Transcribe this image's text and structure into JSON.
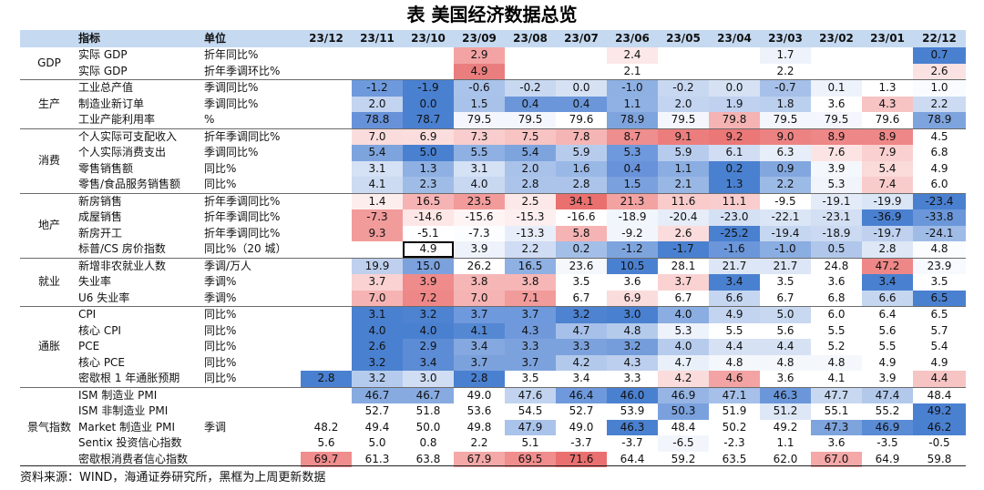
{
  "title": "表  美国经济数据总览",
  "headers": {
    "indicator": "指标",
    "unit": "单位",
    "periods": [
      "23/12",
      "23/11",
      "23/10",
      "23/09",
      "23/08",
      "23/07",
      "23/06",
      "23/05",
      "23/04",
      "23/03",
      "23/02",
      "23/01",
      "22/12"
    ]
  },
  "groups": [
    {
      "name": "GDP",
      "rows": [
        {
          "name": "实际 GDP",
          "unit": "折年同比%",
          "values": [
            "",
            "",
            "",
            "2.9",
            "",
            "",
            "2.4",
            "",
            "",
            "1.7",
            "",
            "",
            "0.7"
          ],
          "colors": [
            "",
            "",
            "",
            "#f3a3a3",
            "",
            "",
            "#fce8e8",
            "",
            "",
            "#eef2fa",
            "",
            "",
            "#4a80d0"
          ]
        },
        {
          "name": "实际 GDP",
          "unit": "折年季调环比%",
          "values": [
            "",
            "",
            "",
            "4.9",
            "",
            "",
            "2.1",
            "",
            "",
            "2.2",
            "",
            "",
            "2.6"
          ],
          "colors": [
            "",
            "",
            "",
            "#ea7e7e",
            "",
            "",
            "#ffffff",
            "",
            "",
            "#ffffff",
            "",
            "",
            "#fbe2e2"
          ]
        }
      ]
    },
    {
      "name": "生产",
      "rows": [
        {
          "name": "工业总产值",
          "unit": "季调同比%",
          "values": [
            "",
            "-1.2",
            "-1.9",
            "-0.6",
            "-0.2",
            "0.0",
            "-1.0",
            "-0.2",
            "0.0",
            "-0.7",
            "0.1",
            "1.3",
            "1.0"
          ],
          "colors": [
            "",
            "#6e99dc",
            "#4a80d0",
            "#aac3ea",
            "#c8d8f1",
            "#d6e2f4",
            "#8eb0e3",
            "#c8d8f1",
            "#d6e2f4",
            "#a6c0e9",
            "#eef2fa",
            "#ffffff",
            "#f9fbfe"
          ]
        },
        {
          "name": "制造业新订单",
          "unit": "季调同比%",
          "values": [
            "",
            "2.0",
            "0.0",
            "1.5",
            "0.4",
            "0.4",
            "1.1",
            "2.0",
            "1.9",
            "1.8",
            "3.6",
            "4.3",
            "2.2"
          ],
          "colors": [
            "",
            "#c3d4f0",
            "#4a80d0",
            "#a9c2e9",
            "#6b97da",
            "#6b97da",
            "#90b1e3",
            "#c3d4f0",
            "#bfd1ef",
            "#bbcfee",
            "#ffffff",
            "#f7c3c3",
            "#ccdbf2"
          ]
        },
        {
          "name": "工业产能利用率",
          "unit": "%",
          "values": [
            "",
            "78.8",
            "78.7",
            "79.5",
            "79.5",
            "79.6",
            "78.9",
            "79.5",
            "79.8",
            "79.5",
            "79.5",
            "79.6",
            "78.9"
          ],
          "colors": [
            "",
            "#6792d9",
            "#4a80d0",
            "#f3f6fc",
            "#f3f6fc",
            "#ffffff",
            "#7ea4de",
            "#f3f6fc",
            "#f6b3b3",
            "#f3f6fc",
            "#f3f6fc",
            "#ffffff",
            "#7ea4de"
          ]
        }
      ]
    },
    {
      "name": "消费",
      "rows": [
        {
          "name": "个人实际可支配收入",
          "unit": "折年季调同比%",
          "values": [
            "",
            "7.0",
            "6.9",
            "7.3",
            "7.5",
            "7.8",
            "8.7",
            "9.1",
            "9.2",
            "9.0",
            "8.9",
            "8.9",
            "4.5"
          ],
          "colors": [
            "",
            "#fbdcdc",
            "#fbdddd",
            "#f9cdcd",
            "#f8c3c3",
            "#f6b5b5",
            "#ef8e8e",
            "#ec7d7d",
            "#eb7777",
            "#ed8282",
            "#ee8787",
            "#ee8787",
            "#ffffff"
          ]
        },
        {
          "name": "个人实际消费支出",
          "unit": "季调同比%",
          "values": [
            "",
            "5.4",
            "5.0",
            "5.5",
            "5.4",
            "5.9",
            "5.3",
            "5.9",
            "6.1",
            "6.3",
            "7.6",
            "7.9",
            "6.8"
          ],
          "colors": [
            "",
            "#7ea4de",
            "#4a80d0",
            "#8eb0e3",
            "#7ea4de",
            "#b7cced",
            "#6e99dc",
            "#b7cced",
            "#d0ddf3",
            "#e8eef9",
            "#fde4e4",
            "#fad0d0",
            "#ffffff"
          ]
        },
        {
          "name": "零售销售额",
          "unit": "同比%",
          "values": [
            "",
            "3.1",
            "1.3",
            "3.1",
            "2.0",
            "1.6",
            "0.4",
            "1.1",
            "0.2",
            "0.9",
            "3.9",
            "5.4",
            "4.9"
          ],
          "colors": [
            "",
            "#d5e1f4",
            "#8fb0e3",
            "#d5e1f4",
            "#a9c2e9",
            "#99b8e6",
            "#6892d9",
            "#8aade2",
            "#4a80d0",
            "#82a7df",
            "#f4f7fc",
            "#fbdada",
            "#ffffff"
          ]
        },
        {
          "name": "零售/食品服务销售额",
          "unit": "同比%",
          "values": [
            "",
            "4.1",
            "2.3",
            "4.0",
            "2.8",
            "2.8",
            "1.5",
            "2.1",
            "1.3",
            "2.2",
            "5.3",
            "7.4",
            "6.0"
          ],
          "colors": [
            "",
            "#ccdbf2",
            "#9fbce7",
            "#c8d8f1",
            "#acc4ea",
            "#acc4ea",
            "#7aa1dd",
            "#98b7e5",
            "#4a80d0",
            "#9cbae6",
            "#f1f5fb",
            "#f9cccc",
            "#ffffff"
          ]
        }
      ]
    },
    {
      "name": "地产",
      "rows": [
        {
          "name": "新房销售",
          "unit": "折年季调同比%",
          "values": [
            "",
            "1.4",
            "16.5",
            "23.5",
            "2.5",
            "34.1",
            "21.3",
            "11.6",
            "11.1",
            "-9.5",
            "-19.1",
            "-19.9",
            "-23.4"
          ],
          "colors": [
            "",
            "#fdeeee",
            "#f6b3b3",
            "#f29b9b",
            "#fce8e8",
            "#ea7070",
            "#f3a2a2",
            "#f9cbcb",
            "#f9cdcd",
            "#ffffff",
            "#e4ebf8",
            "#dae5f5",
            "#4a80d0"
          ]
        },
        {
          "name": "成屋销售",
          "unit": "折年季调同比%",
          "values": [
            "",
            "-7.3",
            "-14.6",
            "-15.6",
            "-15.3",
            "-16.6",
            "-18.9",
            "-20.4",
            "-23.0",
            "-22.1",
            "-23.1",
            "-36.9",
            "-33.8"
          ],
          "colors": [
            "",
            "#f29b9b",
            "#fde6e6",
            "#fff4f4",
            "#fdefef",
            "#ffffff",
            "#f1f5fc",
            "#e6edf9",
            "#d4e0f4",
            "#dae5f5",
            "#d3dff3",
            "#4a80d0",
            "#6b97da"
          ]
        },
        {
          "name": "新房开工",
          "unit": "折年季调同比%",
          "values": [
            "",
            "9.3",
            "-5.1",
            "-7.3",
            "-13.3",
            "5.8",
            "-9.2",
            "2.6",
            "-25.2",
            "-19.4",
            "-18.9",
            "-19.7",
            "-24.1"
          ],
          "colors": [
            "",
            "#f29b9b",
            "#ffffff",
            "#fcfdfe",
            "#e8eef9",
            "#f6b3b3",
            "#f2f6fc",
            "#fbdcdc",
            "#4a80d0",
            "#c5d6f1",
            "#cbdaf2",
            "#bfd1ef",
            "#9fbce7"
          ]
        },
        {
          "name": "标普/CS 房价指数",
          "unit": "同比%（20 城）",
          "values": [
            "",
            "",
            "4.9",
            "3.9",
            "2.2",
            "0.2",
            "-1.2",
            "-1.7",
            "-1.6",
            "-1.0",
            "0.5",
            "2.8",
            "4.8"
          ],
          "colors": [
            "",
            "",
            "#ffffff",
            "#eef2fa",
            "#cfdcf3",
            "#a3bfe8",
            "#7ea4de",
            "#4a80d0",
            "#6b97da",
            "#8aade2",
            "#b0c7eb",
            "#dde7f6",
            "#fafcfe"
          ]
        }
      ]
    },
    {
      "name": "就业",
      "rows": [
        {
          "name": "新增非农就业人数",
          "unit": "季调/万人",
          "values": [
            "",
            "19.9",
            "15.0",
            "26.2",
            "16.5",
            "23.6",
            "10.5",
            "28.1",
            "21.7",
            "21.7",
            "24.8",
            "47.2",
            "23.9"
          ],
          "colors": [
            "",
            "#bed0ee",
            "#7ca2dd",
            "#ffffff",
            "#8fb0e3",
            "#f4f7fc",
            "#4a80d0",
            "#ffffff",
            "#dce6f6",
            "#dce6f6",
            "#ffffff",
            "#ee8787",
            "#f6f9fd"
          ]
        },
        {
          "name": "失业率",
          "unit": "季调%",
          "values": [
            "",
            "3.7",
            "3.9",
            "3.8",
            "3.8",
            "3.5",
            "3.6",
            "3.7",
            "3.4",
            "3.5",
            "3.6",
            "3.4",
            "3.5"
          ],
          "colors": [
            "",
            "#fad2d2",
            "#ef8b8b",
            "#f6b6b6",
            "#f6b6b6",
            "#ffffff",
            "#ffffff",
            "#fad2d2",
            "#4a80d0",
            "#ffffff",
            "#ffffff",
            "#4a80d0",
            "#ffffff"
          ]
        },
        {
          "name": "U6 失业率",
          "unit": "季调%",
          "values": [
            "",
            "7.0",
            "7.2",
            "7.0",
            "7.1",
            "6.7",
            "6.9",
            "6.7",
            "6.6",
            "6.7",
            "6.8",
            "6.6",
            "6.5"
          ],
          "colors": [
            "",
            "#f6b3b3",
            "#ee8787",
            "#f6b3b3",
            "#f29b9b",
            "#ffffff",
            "#fbdcdc",
            "#ffffff",
            "#c5d6f1",
            "#ffffff",
            "#ffffff",
            "#c5d6f1",
            "#4a80d0"
          ]
        }
      ]
    },
    {
      "name": "通胀",
      "rows": [
        {
          "name": "CPI",
          "unit": "同比%",
          "values": [
            "",
            "3.1",
            "3.2",
            "3.7",
            "3.7",
            "3.2",
            "3.0",
            "4.0",
            "4.9",
            "5.0",
            "6.0",
            "6.4",
            "6.5"
          ],
          "colors": [
            "",
            "#4a80d0",
            "#4d83d1",
            "#6e99dc",
            "#6e99dc",
            "#4d83d1",
            "#4a80d0",
            "#8aade2",
            "#c3d4f0",
            "#c8d8f1",
            "#ffffff",
            "#ffffff",
            "#ffffff"
          ]
        },
        {
          "name": "核心 CPI",
          "unit": "同比%",
          "values": [
            "",
            "4.0",
            "4.0",
            "4.1",
            "4.3",
            "4.7",
            "4.8",
            "5.3",
            "5.5",
            "5.6",
            "5.5",
            "5.6",
            "5.7"
          ],
          "colors": [
            "",
            "#4a80d0",
            "#4a80d0",
            "#5588d3",
            "#7099dc",
            "#a6c0e9",
            "#b4cbec",
            "#eef2fa",
            "#ffffff",
            "#ffffff",
            "#ffffff",
            "#ffffff",
            "#ffffff"
          ]
        },
        {
          "name": "PCE",
          "unit": "同比%",
          "values": [
            "",
            "2.6",
            "2.9",
            "3.4",
            "3.3",
            "3.3",
            "3.2",
            "4.0",
            "4.4",
            "4.4",
            "5.2",
            "5.5",
            "5.4"
          ],
          "colors": [
            "",
            "#4a80d0",
            "#5c8cd5",
            "#84a8df",
            "#7ca2dd",
            "#7ca2dd",
            "#759ddb",
            "#b7cced",
            "#d6e2f4",
            "#d6e2f4",
            "#ffffff",
            "#ffffff",
            "#ffffff"
          ]
        },
        {
          "name": "核心 PCE",
          "unit": "同比%",
          "values": [
            "",
            "3.2",
            "3.4",
            "3.7",
            "3.7",
            "4.2",
            "4.3",
            "4.7",
            "4.8",
            "4.8",
            "4.8",
            "4.9",
            "4.9"
          ],
          "colors": [
            "",
            "#4a80d0",
            "#5c8cd5",
            "#7ca2dd",
            "#7ca2dd",
            "#b2c9ec",
            "#bdcfee",
            "#eaf0fa",
            "#f4f7fc",
            "#f4f7fc",
            "#f4f7fc",
            "#ffffff",
            "#ffffff"
          ]
        },
        {
          "name": "密歇根 1 年通胀预期",
          "unit": "同比%",
          "values": [
            "2.8",
            "3.2",
            "3.0",
            "2.8",
            "3.5",
            "3.4",
            "3.3",
            "4.2",
            "4.6",
            "3.6",
            "4.1",
            "3.9",
            "4.4"
          ],
          "colors": [
            "#4a80d0",
            "#b5cbed",
            "#d0ddf3",
            "#4a80d0",
            "#ffffff",
            "#ffffff",
            "#ffffff",
            "#fbdcdc",
            "#f3a3a3",
            "#ffffff",
            "#ffffff",
            "#ffffff",
            "#f7c4c4"
          ]
        }
      ]
    },
    {
      "name": "景气指数",
      "rows": [
        {
          "name": "ISM 制造业 PMI",
          "unit": "",
          "values": [
            "",
            "46.7",
            "46.7",
            "49.0",
            "47.6",
            "46.4",
            "46.0",
            "46.9",
            "47.1",
            "46.3",
            "47.7",
            "47.4",
            "48.4"
          ],
          "colors": [
            "",
            "#87aae0",
            "#87aae0",
            "#ffffff",
            "#c1d3ef",
            "#6e99dc",
            "#4a80d0",
            "#96b5e5",
            "#a6c0e9",
            "#6b97da",
            "#c8d8f1",
            "#b2c9ec",
            "#ffffff"
          ]
        },
        {
          "name": "ISM 非制造业 PMI",
          "unit": "",
          "values": [
            "",
            "52.7",
            "51.8",
            "53.6",
            "54.5",
            "52.7",
            "53.9",
            "50.3",
            "51.9",
            "51.2",
            "55.1",
            "55.2",
            "49.2"
          ],
          "colors": [
            "",
            "#ffffff",
            "#ffffff",
            "#ffffff",
            "#ffffff",
            "#ffffff",
            "#ffffff",
            "#7aa1dd",
            "#ffffff",
            "#dde7f6",
            "#ffffff",
            "#ffffff",
            "#4a80d0"
          ]
        },
        {
          "name": "Market 制造业 PMI",
          "unit": "季调",
          "values": [
            "48.2",
            "49.4",
            "50.0",
            "49.8",
            "47.9",
            "49.0",
            "46.3",
            "48.4",
            "50.2",
            "49.2",
            "47.3",
            "46.9",
            "46.2"
          ],
          "colors": [
            "#ffffff",
            "#ffffff",
            "#ffffff",
            "#ffffff",
            "#aac3ea",
            "#ffffff",
            "#4a80d0",
            "#ffffff",
            "#ffffff",
            "#ffffff",
            "#7ea4de",
            "#5a8bd5",
            "#4a80d0"
          ]
        },
        {
          "name": "Sentix 投资信心指数",
          "unit": "",
          "values": [
            "5.6",
            "5.0",
            "0.8",
            "2.2",
            "5.1",
            "-3.7",
            "-3.7",
            "-6.5",
            "-2.3",
            "1.1",
            "3.6",
            "-3.5",
            "-0.5"
          ],
          "colors": [
            "#ffffff",
            "#ffffff",
            "#ffffff",
            "#ffffff",
            "#ffffff",
            "#ffffff",
            "#ffffff",
            "#f2f6fc",
            "#ffffff",
            "#ffffff",
            "#ffffff",
            "#ffffff",
            "#ffffff"
          ]
        },
        {
          "name": "密歇根消费者信心指数",
          "unit": "",
          "values": [
            "69.7",
            "61.3",
            "63.8",
            "67.9",
            "69.5",
            "71.6",
            "64.4",
            "59.2",
            "63.5",
            "62.0",
            "67.0",
            "64.9",
            "59.8"
          ],
          "colors": [
            "#f08d8d",
            "#ffffff",
            "#ffffff",
            "#f4a8a8",
            "#f08d8d",
            "#ea7070",
            "#ffffff",
            "#ffffff",
            "#ffffff",
            "#ffffff",
            "#f4a8a8",
            "#ffffff",
            "#ffffff"
          ]
        }
      ]
    }
  ],
  "boxed_cell": {
    "row": "标普/CS 房价指数",
    "period": "23/10"
  },
  "source": "资料来源：WIND，海通证券研究所，黑框为上周更新数据"
}
